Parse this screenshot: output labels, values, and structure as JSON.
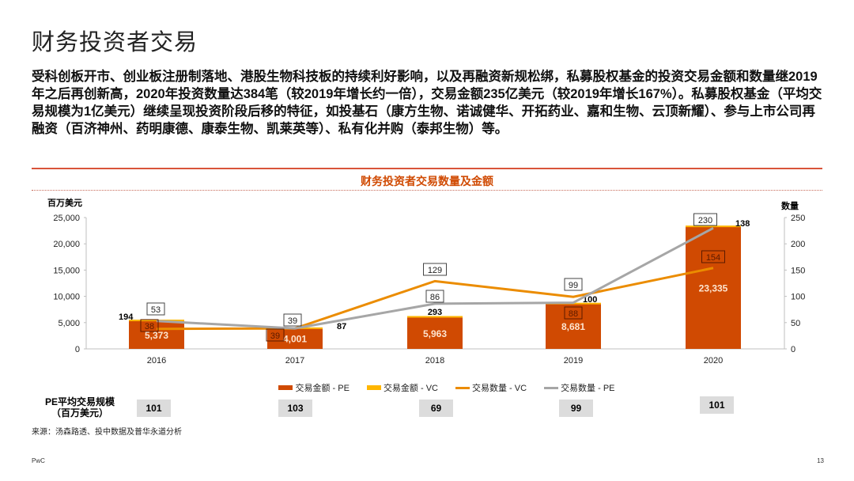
{
  "title": "财务投资者交易",
  "paragraph": "受科创板开市、创业板注册制落地、港股生物科技板的持续利好影响，以及再融资新规松绑，私募股权基金的投资交易金额和数量继2019年之后再创新高，2020年投资数量达384笔（较2019年增长约一倍），交易金额235亿美元（较2019年增长167%）。私募股权基金（平均交易规模为1亿美元）继续呈现投资阶段后移的特征，如投基石（康方生物、诺诚健华、开拓药业、嘉和生物、云顶新耀）、参与上市公司再融资（百济神州、药明康德、康泰生物、凯莱英等）、私有化并购（泰邦生物）等。",
  "chart_data": {
    "type": "bar",
    "title": "财务投资者交易数量及金额",
    "ylabel": "百万美元",
    "y2label": "数量",
    "ylim": [
      0,
      25000
    ],
    "y2lim": [
      0,
      250
    ],
    "yticks": [
      "0",
      "5,000",
      "10,000",
      "15,000",
      "20,000",
      "25,000"
    ],
    "y2ticks": [
      "0",
      "50",
      "100",
      "150",
      "200",
      "250"
    ],
    "categories": [
      "2016",
      "2017",
      "2018",
      "2019",
      "2020"
    ],
    "series": [
      {
        "name": "交易金额 - PE",
        "kind": "bar",
        "axis": "left",
        "values": [
          5373,
          4001,
          5963,
          8681,
          23335
        ],
        "labels": [
          "5,373",
          "4,001",
          "5,963",
          "8,681",
          "23,335"
        ],
        "color": "#d04a02"
      },
      {
        "name": "交易金额 - VC",
        "kind": "bar",
        "axis": "left",
        "values": [
          194,
          87,
          293,
          100,
          138
        ],
        "labels": [
          "194",
          "87",
          "293",
          "100",
          "138"
        ],
        "color": "#ffb600"
      },
      {
        "name": "交易数量 - VC",
        "kind": "line",
        "axis": "right",
        "values": [
          38,
          39,
          129,
          99,
          154
        ],
        "labels": [
          "38",
          "39",
          "129",
          "99",
          "154"
        ],
        "color": "#eb8c00"
      },
      {
        "name": "交易数量 - PE",
        "kind": "line",
        "axis": "right",
        "values": [
          53,
          39,
          86,
          88,
          230
        ],
        "labels": [
          "53",
          "39",
          "86",
          "88",
          "230"
        ],
        "color": "#a6a6a6"
      }
    ]
  },
  "pe_avg": {
    "label_line1": "PE平均交易规模",
    "label_line2": "（百万美元）",
    "values": [
      "101",
      "103",
      "69",
      "99",
      "101"
    ]
  },
  "source": "来源：汤森路透、投中数据及普华永道分析",
  "footer_left": "PwC",
  "page_number": "13"
}
